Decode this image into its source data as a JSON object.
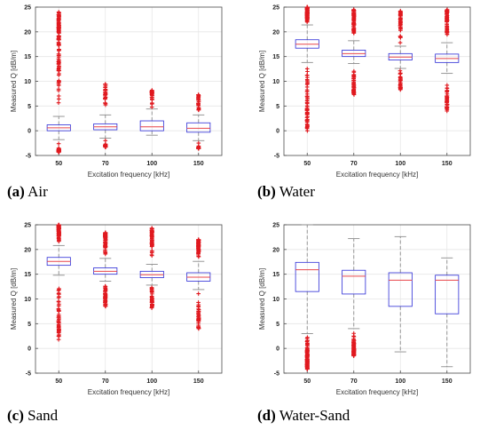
{
  "colors": {
    "box": "#2b2bd6",
    "median": "#e8474b",
    "outlier": "#e0191f",
    "whisker": "#8c8c8c",
    "grid": "#e6e6e6",
    "axis": "#4d4d4d"
  },
  "chart_data": [
    {
      "type": "boxplot",
      "caption_letter": "(a)",
      "caption_text": " Air",
      "xlabel": "Excitation frequency [kHz]",
      "ylabel": "Measured Q [dB/m]",
      "categories": [
        "50",
        "70",
        "100",
        "150"
      ],
      "ylim": [
        -5,
        25
      ],
      "yticks": [
        -5,
        0,
        5,
        10,
        15,
        20,
        25
      ],
      "grid": true,
      "boxes": [
        {
          "q1": 0.0,
          "median": 0.6,
          "q3": 1.2,
          "whislo": -1.8,
          "whishi": 2.9,
          "fliers_low": [
            -4.3,
            -3.5,
            -2.6
          ],
          "fliers_high": [
            3.0,
            24.0
          ],
          "flier_density": 190
        },
        {
          "q1": 0.2,
          "median": 0.8,
          "q3": 1.4,
          "whislo": -1.5,
          "whishi": 3.2,
          "fliers_low": [
            -3.3,
            -2.7,
            -2.0
          ],
          "fliers_high": [
            3.3,
            9.4
          ],
          "flier_density": 50
        },
        {
          "q1": 0.0,
          "median": 0.8,
          "q3": 2.0,
          "whislo": -0.9,
          "whishi": 4.4,
          "fliers_low": [],
          "fliers_high": [
            4.5,
            8.2
          ],
          "flier_density": 30
        },
        {
          "q1": -0.3,
          "median": 0.5,
          "q3": 1.6,
          "whislo": -2.0,
          "whishi": 3.2,
          "fliers_low": [
            -3.6,
            -3.1,
            -2.5
          ],
          "fliers_high": [
            3.3,
            7.3
          ],
          "flier_density": 40
        }
      ]
    },
    {
      "type": "boxplot",
      "caption_letter": "(b)",
      "caption_text": " Water",
      "xlabel": "Excitation frequency [kHz]",
      "ylabel": "Measured Q [dB/m]",
      "categories": [
        "50",
        "70",
        "100",
        "150"
      ],
      "ylim": [
        -5,
        25
      ],
      "yticks": [
        -5,
        0,
        5,
        10,
        15,
        20,
        25
      ],
      "grid": true,
      "boxes": [
        {
          "q1": 16.7,
          "median": 17.5,
          "q3": 18.4,
          "whislo": 13.8,
          "whishi": 21.4,
          "fliers_low": [
            0.0,
            13.7
          ],
          "fliers_high": [
            21.5,
            25.0
          ],
          "flier_density": 160
        },
        {
          "q1": 15.0,
          "median": 15.6,
          "q3": 16.3,
          "whislo": 13.6,
          "whishi": 18.2,
          "fliers_low": [
            7.3,
            13.5
          ],
          "fliers_high": [
            18.3,
            24.5
          ],
          "flier_density": 120
        },
        {
          "q1": 14.3,
          "median": 14.9,
          "q3": 15.6,
          "whislo": 12.6,
          "whishi": 17.1,
          "fliers_low": [
            8.3,
            12.5
          ],
          "fliers_high": [
            17.2,
            24.2
          ],
          "flier_density": 80
        },
        {
          "q1": 13.8,
          "median": 14.6,
          "q3": 15.5,
          "whislo": 11.6,
          "whishi": 17.8,
          "fliers_low": [
            4.0,
            11.5
          ],
          "fliers_high": [
            17.9,
            24.5
          ],
          "flier_density": 100
        }
      ]
    },
    {
      "type": "boxplot",
      "caption_letter": "(c)",
      "caption_text": " Sand",
      "xlabel": "Excitation frequency [kHz]",
      "ylabel": "Measured Q [dB/m]",
      "categories": [
        "50",
        "70",
        "100",
        "150"
      ],
      "ylim": [
        -5,
        25
      ],
      "yticks": [
        -5,
        0,
        5,
        10,
        15,
        20,
        25
      ],
      "grid": true,
      "boxes": [
        {
          "q1": 16.8,
          "median": 17.6,
          "q3": 18.4,
          "whislo": 14.8,
          "whishi": 20.8,
          "fliers_low": [
            1.8,
            14.7
          ],
          "fliers_high": [
            20.9,
            25.0
          ],
          "flier_density": 130
        },
        {
          "q1": 15.0,
          "median": 15.6,
          "q3": 16.3,
          "whislo": 13.6,
          "whishi": 18.2,
          "fliers_low": [
            8.5,
            13.5
          ],
          "fliers_high": [
            18.3,
            23.4
          ],
          "flier_density": 110
        },
        {
          "q1": 14.3,
          "median": 14.9,
          "q3": 15.6,
          "whislo": 12.8,
          "whishi": 17.0,
          "fliers_low": [
            8.2,
            12.7
          ],
          "fliers_high": [
            17.1,
            24.3
          ],
          "flier_density": 90
        },
        {
          "q1": 13.6,
          "median": 14.4,
          "q3": 15.3,
          "whislo": 11.9,
          "whishi": 17.6,
          "fliers_low": [
            4.0,
            11.8
          ],
          "fliers_high": [
            17.7,
            22.0
          ],
          "flier_density": 100
        }
      ]
    },
    {
      "type": "boxplot",
      "caption_letter": "(d)",
      "caption_text": " Water-Sand",
      "xlabel": "Excitation frequency [kHz]",
      "ylabel": "Measured Q [dB/m]",
      "categories": [
        "50",
        "70",
        "100",
        "150"
      ],
      "ylim": [
        -5,
        25
      ],
      "yticks": [
        -5,
        0,
        5,
        10,
        15,
        20,
        25
      ],
      "grid": true,
      "boxes": [
        {
          "q1": 11.5,
          "median": 15.9,
          "q3": 17.4,
          "whislo": 3.0,
          "whishi": 25.0,
          "fliers_low": [
            -4.2,
            2.8
          ],
          "fliers_high": [],
          "flier_density": 110
        },
        {
          "q1": 11.0,
          "median": 14.6,
          "q3": 15.8,
          "whislo": 4.0,
          "whishi": 22.2,
          "fliers_low": [
            -1.5,
            3.8
          ],
          "fliers_high": [],
          "flier_density": 90
        },
        {
          "q1": 8.5,
          "median": 13.8,
          "q3": 15.3,
          "whislo": -0.7,
          "whishi": 22.6,
          "fliers_low": [],
          "fliers_high": [],
          "flier_density": 0
        },
        {
          "q1": 7.0,
          "median": 13.8,
          "q3": 14.8,
          "whislo": -3.7,
          "whishi": 18.3,
          "fliers_low": [],
          "fliers_high": [],
          "flier_density": 0
        }
      ]
    }
  ]
}
